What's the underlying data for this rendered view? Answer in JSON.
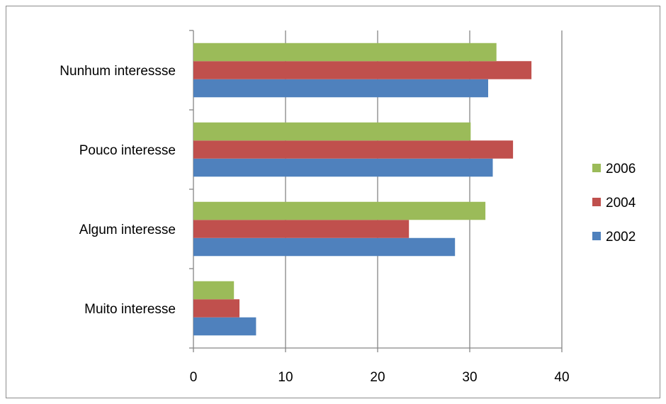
{
  "chart_data": {
    "type": "bar",
    "orientation": "horizontal",
    "categories": [
      "Muito interesse",
      "Algum interesse",
      "Pouco interesse",
      "Nunhum interessse"
    ],
    "series": [
      {
        "name": "2002",
        "color": "#4f81bd",
        "values": [
          6.8,
          28.4,
          32.5,
          32.0
        ]
      },
      {
        "name": "2004",
        "color": "#c0504d",
        "values": [
          5.0,
          23.4,
          34.7,
          36.7
        ]
      },
      {
        "name": "2006",
        "color": "#9bbb59",
        "values": [
          4.4,
          31.7,
          30.1,
          32.9
        ]
      }
    ],
    "xlim": [
      0,
      40
    ],
    "xticks": [
      0,
      10,
      20,
      30,
      40
    ],
    "grid": true,
    "legend_position": "right"
  }
}
